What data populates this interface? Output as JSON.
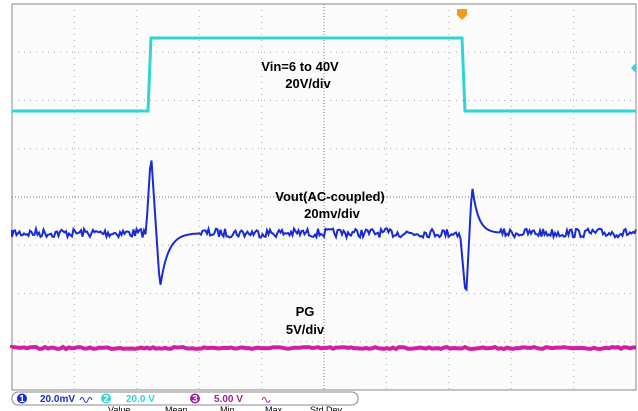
{
  "traces": [
    {
      "label": "Vin=6 to 40V",
      "scale": "20V/div"
    },
    {
      "label": "Vout(AC-coupled)",
      "scale": "20mv/div"
    },
    {
      "label": "PG",
      "scale": "5V/div"
    }
  ],
  "status_bar": {
    "channels": [
      {
        "number": "1",
        "scale": "20.0mV"
      },
      {
        "number": "2",
        "scale": "20.0 V"
      },
      {
        "number": "3",
        "scale": "5.00 V"
      }
    ],
    "measurement_headers": [
      "Value",
      "Mean",
      "Min",
      "Max",
      "Std Dev"
    ]
  }
}
